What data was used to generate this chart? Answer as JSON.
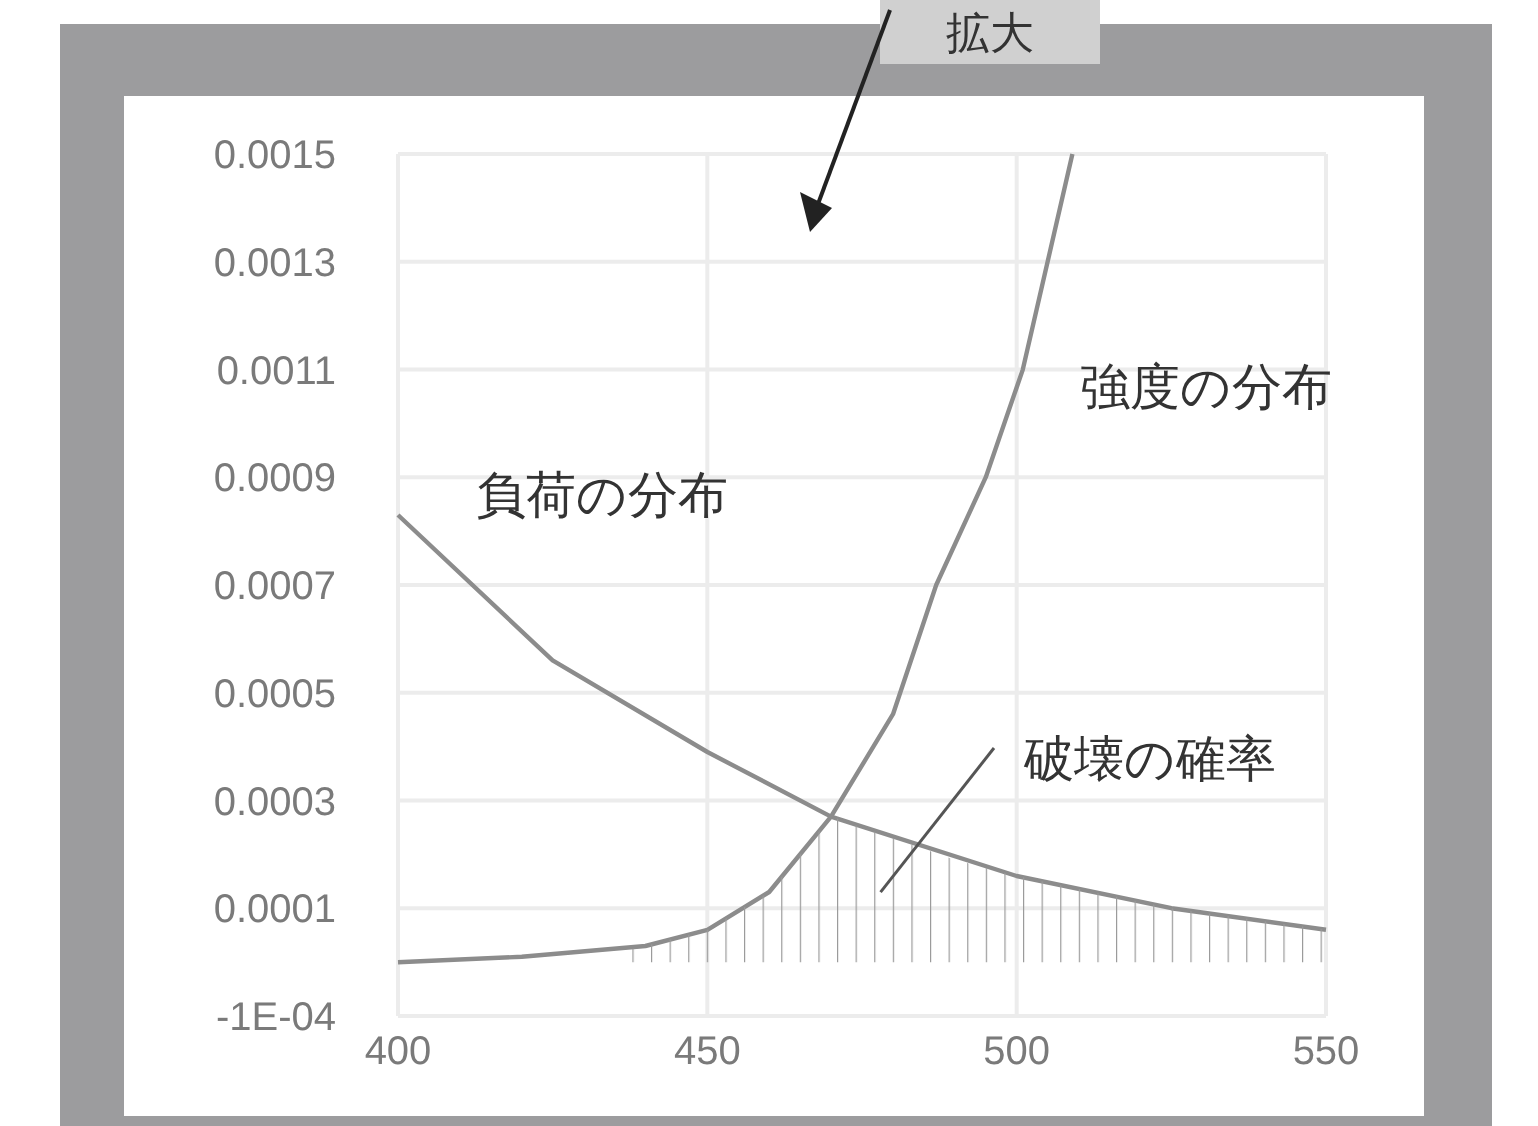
{
  "chart_data": {
    "type": "line",
    "xlim": [
      400,
      550
    ],
    "ylim": [
      -0.0001,
      0.0015
    ],
    "xticks": [
      400,
      450,
      500,
      550
    ],
    "yticks": [
      {
        "value": -0.0001,
        "label": "-1E-04"
      },
      {
        "value": 0.0001,
        "label": "0.0001"
      },
      {
        "value": 0.0003,
        "label": "0.0003"
      },
      {
        "value": 0.0005,
        "label": "0.0005"
      },
      {
        "value": 0.0007,
        "label": "0.0007"
      },
      {
        "value": 0.0009,
        "label": "0.0009"
      },
      {
        "value": 0.0011,
        "label": "0.0011"
      },
      {
        "value": 0.0013,
        "label": "0.0013"
      },
      {
        "value": 0.0015,
        "label": "0.0015"
      }
    ],
    "grid": true,
    "series": [
      {
        "name": "負荷の分布",
        "color": "#8c8c8c",
        "x": [
          400,
          425,
          450,
          470,
          500,
          525,
          550
        ],
        "values": [
          0.00083,
          0.00056,
          0.00039,
          0.00027,
          0.00016,
          0.0001,
          6e-05
        ]
      },
      {
        "name": "強度の分布",
        "color": "#8c8c8c",
        "x": [
          400,
          420,
          440,
          450,
          460,
          470,
          480,
          487,
          495,
          501,
          509
        ],
        "values": [
          0,
          1e-05,
          3e-05,
          6e-05,
          0.00013,
          0.00027,
          0.00046,
          0.0007,
          0.0009,
          0.0011,
          0.0015
        ]
      },
      {
        "type": "area",
        "color": "#9a9a9a",
        "x": [
          436,
          440,
          450,
          460,
          470,
          480,
          490,
          500,
          525,
          550
        ],
        "values": [
          2e-05,
          3e-05,
          6e-05,
          0.00013,
          0.00027,
          0.00023,
          0.00019,
          0.00016,
          0.0001,
          6e-05
        ]
      }
    ],
    "annotations": [
      "破壊の確率",
      "拡大"
    ]
  }
}
